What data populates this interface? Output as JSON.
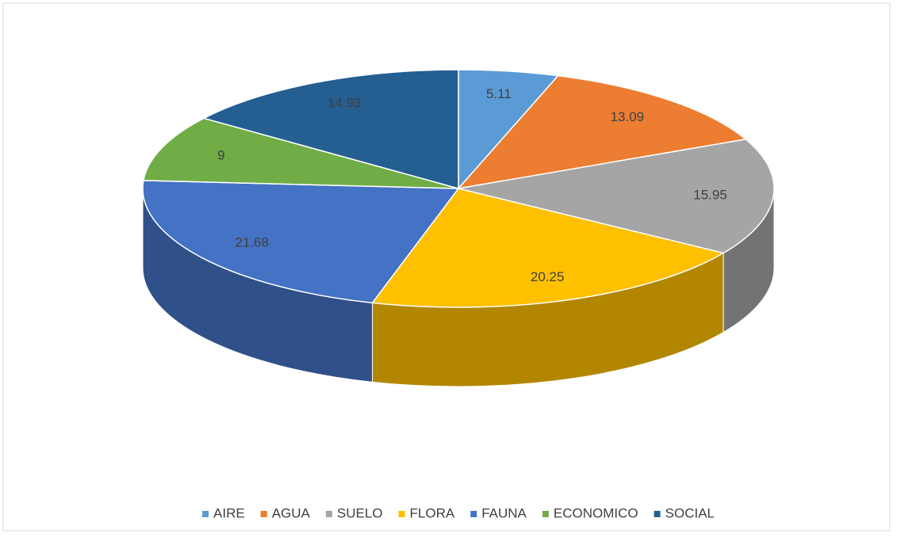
{
  "chart_data": {
    "type": "pie3d",
    "categories": [
      "AIRE",
      "AGUA",
      "SUELO",
      "FLORA",
      "FAUNA",
      "ECONOMICO",
      "SOCIAL"
    ],
    "values": [
      5.11,
      13.09,
      15.95,
      20.25,
      21.68,
      9,
      14.93
    ],
    "colors": [
      "#5b9bd5",
      "#ed7d31",
      "#a5a5a5",
      "#ffc000",
      "#4472c4",
      "#70ad47",
      "#255e91"
    ],
    "legend": "bottom"
  }
}
